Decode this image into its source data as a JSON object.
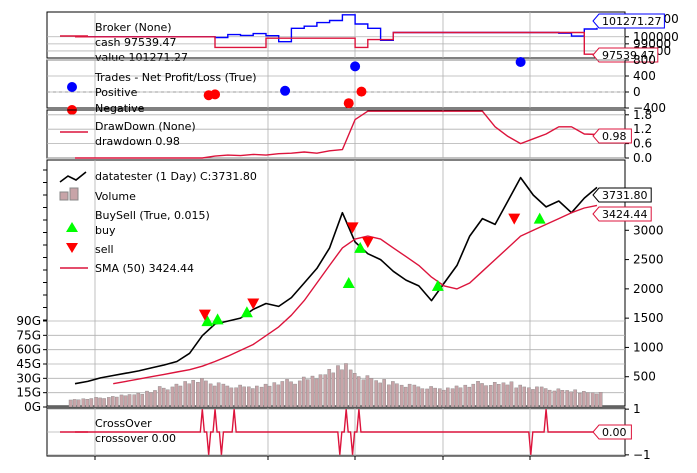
{
  "colors": {
    "value_line": "#0000ff",
    "cash_line": "#dc143c",
    "price_line": "#000000",
    "sma_line": "#dc143c",
    "buy_marker": "#00ff00",
    "sell_marker": "#ff0000",
    "win_marker": "#0000ff",
    "loss_marker": "#ff0000",
    "volume_bar": "#c8a4a8",
    "grid": "#b0b0b0"
  },
  "chart_data": [
    {
      "type": "line",
      "panel": "broker",
      "legend": [
        "Broker (None)",
        "cash 97539.47",
        "value 101271.27"
      ],
      "series": [
        {
          "name": "value",
          "values": [
            100000,
            100000,
            100000,
            100000,
            100000,
            100000,
            100000,
            100000,
            100000,
            100000,
            100000,
            99900,
            100300,
            100200,
            100450,
            100150,
            99300,
            101200,
            101500,
            102000,
            102300,
            103100,
            101800,
            101200,
            99500,
            100600,
            100600,
            100600,
            100600,
            100600,
            100600,
            100600,
            100600,
            100600,
            100600,
            100600,
            100600,
            100600,
            100500,
            100100,
            101100,
            101271.27
          ]
        },
        {
          "name": "cash",
          "values": [
            100000,
            100000,
            100000,
            100000,
            100000,
            100000,
            100000,
            100000,
            100000,
            100000,
            100000,
            98500,
            98500,
            98500,
            98500,
            99800,
            99800,
            99800,
            99800,
            99800,
            99800,
            99800,
            98500,
            99600,
            99600,
            100600,
            100600,
            100600,
            100600,
            100600,
            100600,
            100600,
            100600,
            100600,
            100600,
            100600,
            100600,
            100600,
            100600,
            100600,
            97539.47,
            97539.47
          ]
        }
      ],
      "ylim": [
        97000,
        103500
      ],
      "yticks": [
        "100000",
        "99000",
        "98000"
      ],
      "end_tags": [
        "101271.27",
        "97539.47"
      ]
    },
    {
      "type": "scatter",
      "panel": "trades",
      "legend": [
        "Trades - Net Profit/Loss (True)",
        "Positive",
        "Negative"
      ],
      "series": [
        {
          "name": "Positive",
          "points": [
            [
              16.5,
              30
            ],
            [
              22.0,
              640
            ],
            [
              35.0,
              750
            ]
          ]
        },
        {
          "name": "Negative",
          "points": [
            [
              10.5,
              -80
            ],
            [
              11.0,
              -60
            ],
            [
              21.5,
              -280
            ],
            [
              22.5,
              10
            ]
          ]
        }
      ],
      "ylim": [
        -400,
        800
      ],
      "yticks": [
        "800",
        "400",
        "0",
        "−400"
      ]
    },
    {
      "type": "line",
      "panel": "drawdown",
      "legend": [
        "DrawDown (None)",
        "drawdown 0.98"
      ],
      "series": [
        {
          "name": "drawdown",
          "values": [
            0,
            0,
            0,
            0,
            0,
            0,
            0,
            0,
            0,
            0,
            0,
            0.08,
            0.12,
            0.1,
            0.15,
            0.12,
            0.18,
            0.2,
            0.25,
            0.2,
            0.3,
            0.35,
            1.6,
            1.95,
            1.95,
            1.95,
            1.95,
            1.95,
            1.95,
            1.95,
            1.95,
            1.95,
            1.95,
            1.3,
            0.9,
            0.6,
            0.8,
            1.0,
            1.3,
            1.3,
            1.0,
            0.98
          ]
        }
      ],
      "ylim": [
        0,
        2.0
      ],
      "yticks": [
        "1.8",
        "1.2",
        "0.6",
        "0.0"
      ],
      "end_tag": "0.98"
    },
    {
      "type": "line",
      "panel": "price",
      "legend": [
        "datatester (1 Day) C:3731.80",
        "Volume",
        "BuySell (True, 0.015)",
        "buy",
        "sell",
        "SMA (50) 3424.44"
      ],
      "series": [
        {
          "name": "close",
          "values": [
            380,
            420,
            480,
            520,
            560,
            600,
            650,
            700,
            760,
            900,
            1200,
            1400,
            1450,
            1500,
            1650,
            1750,
            1700,
            1850,
            2100,
            2350,
            2700,
            3300,
            2800,
            2600,
            2500,
            2300,
            2150,
            2050,
            1800,
            2100,
            2400,
            2900,
            3200,
            3100,
            3500,
            3900,
            3600,
            3400,
            3500,
            3300,
            3550,
            3731.8
          ]
        },
        {
          "name": "SMA (50)",
          "values": [
            null,
            null,
            null,
            380,
            420,
            460,
            500,
            540,
            580,
            620,
            680,
            760,
            850,
            950,
            1050,
            1200,
            1350,
            1550,
            1800,
            2100,
            2400,
            2700,
            2850,
            2900,
            2850,
            2700,
            2550,
            2400,
            2200,
            2050,
            2000,
            2100,
            2300,
            2500,
            2700,
            2900,
            3000,
            3100,
            3200,
            3300,
            3380,
            3424.44
          ]
        },
        {
          "name": "volume",
          "values": [
            8,
            10,
            12,
            14,
            18,
            22,
            28,
            35,
            40,
            48,
            55,
            45,
            40,
            38,
            36,
            42,
            48,
            50,
            55,
            60,
            75,
            88,
            70,
            58,
            50,
            48,
            42,
            38,
            35,
            32,
            38,
            42,
            46,
            44,
            45,
            40,
            36,
            34,
            30,
            28,
            26,
            24
          ]
        }
      ],
      "buy_signals": [
        [
          10.4,
          1450
        ],
        [
          11.2,
          1480
        ],
        [
          13.5,
          1600
        ],
        [
          21.5,
          2100
        ],
        [
          22.4,
          2700
        ],
        [
          28.5,
          2050
        ],
        [
          36.5,
          3200
        ]
      ],
      "sell_signals": [
        [
          10.2,
          1560
        ],
        [
          14.0,
          1750
        ],
        [
          21.8,
          3050
        ],
        [
          23.0,
          2800
        ],
        [
          34.5,
          3200
        ]
      ],
      "ylim": [
        0,
        4200
      ],
      "yticks": [
        "3000",
        "2500",
        "2000",
        "1500",
        "1000",
        "500"
      ],
      "volume_ticks": [
        "90G",
        "75G",
        "60G",
        "45G",
        "30G",
        "15G",
        "0G"
      ],
      "end_tags": [
        "3731.80",
        "3424.44"
      ]
    },
    {
      "type": "line",
      "panel": "crossover",
      "legend": [
        "CrossOver",
        "crossover 0.00"
      ],
      "series": [
        {
          "name": "crossover",
          "spikes": [
            [
              10.0,
              1
            ],
            [
              10.5,
              -1
            ],
            [
              11.0,
              1
            ],
            [
              11.5,
              -1
            ],
            [
              12.5,
              1
            ],
            [
              20.8,
              -1
            ],
            [
              21.3,
              1
            ],
            [
              21.8,
              -1
            ],
            [
              22.3,
              1
            ],
            [
              35.8,
              -1
            ],
            [
              37.0,
              1
            ]
          ]
        }
      ],
      "ylim": [
        -1,
        1
      ],
      "yticks": [
        "1",
        "0",
        "−1"
      ],
      "end_tag": "0.00"
    }
  ]
}
